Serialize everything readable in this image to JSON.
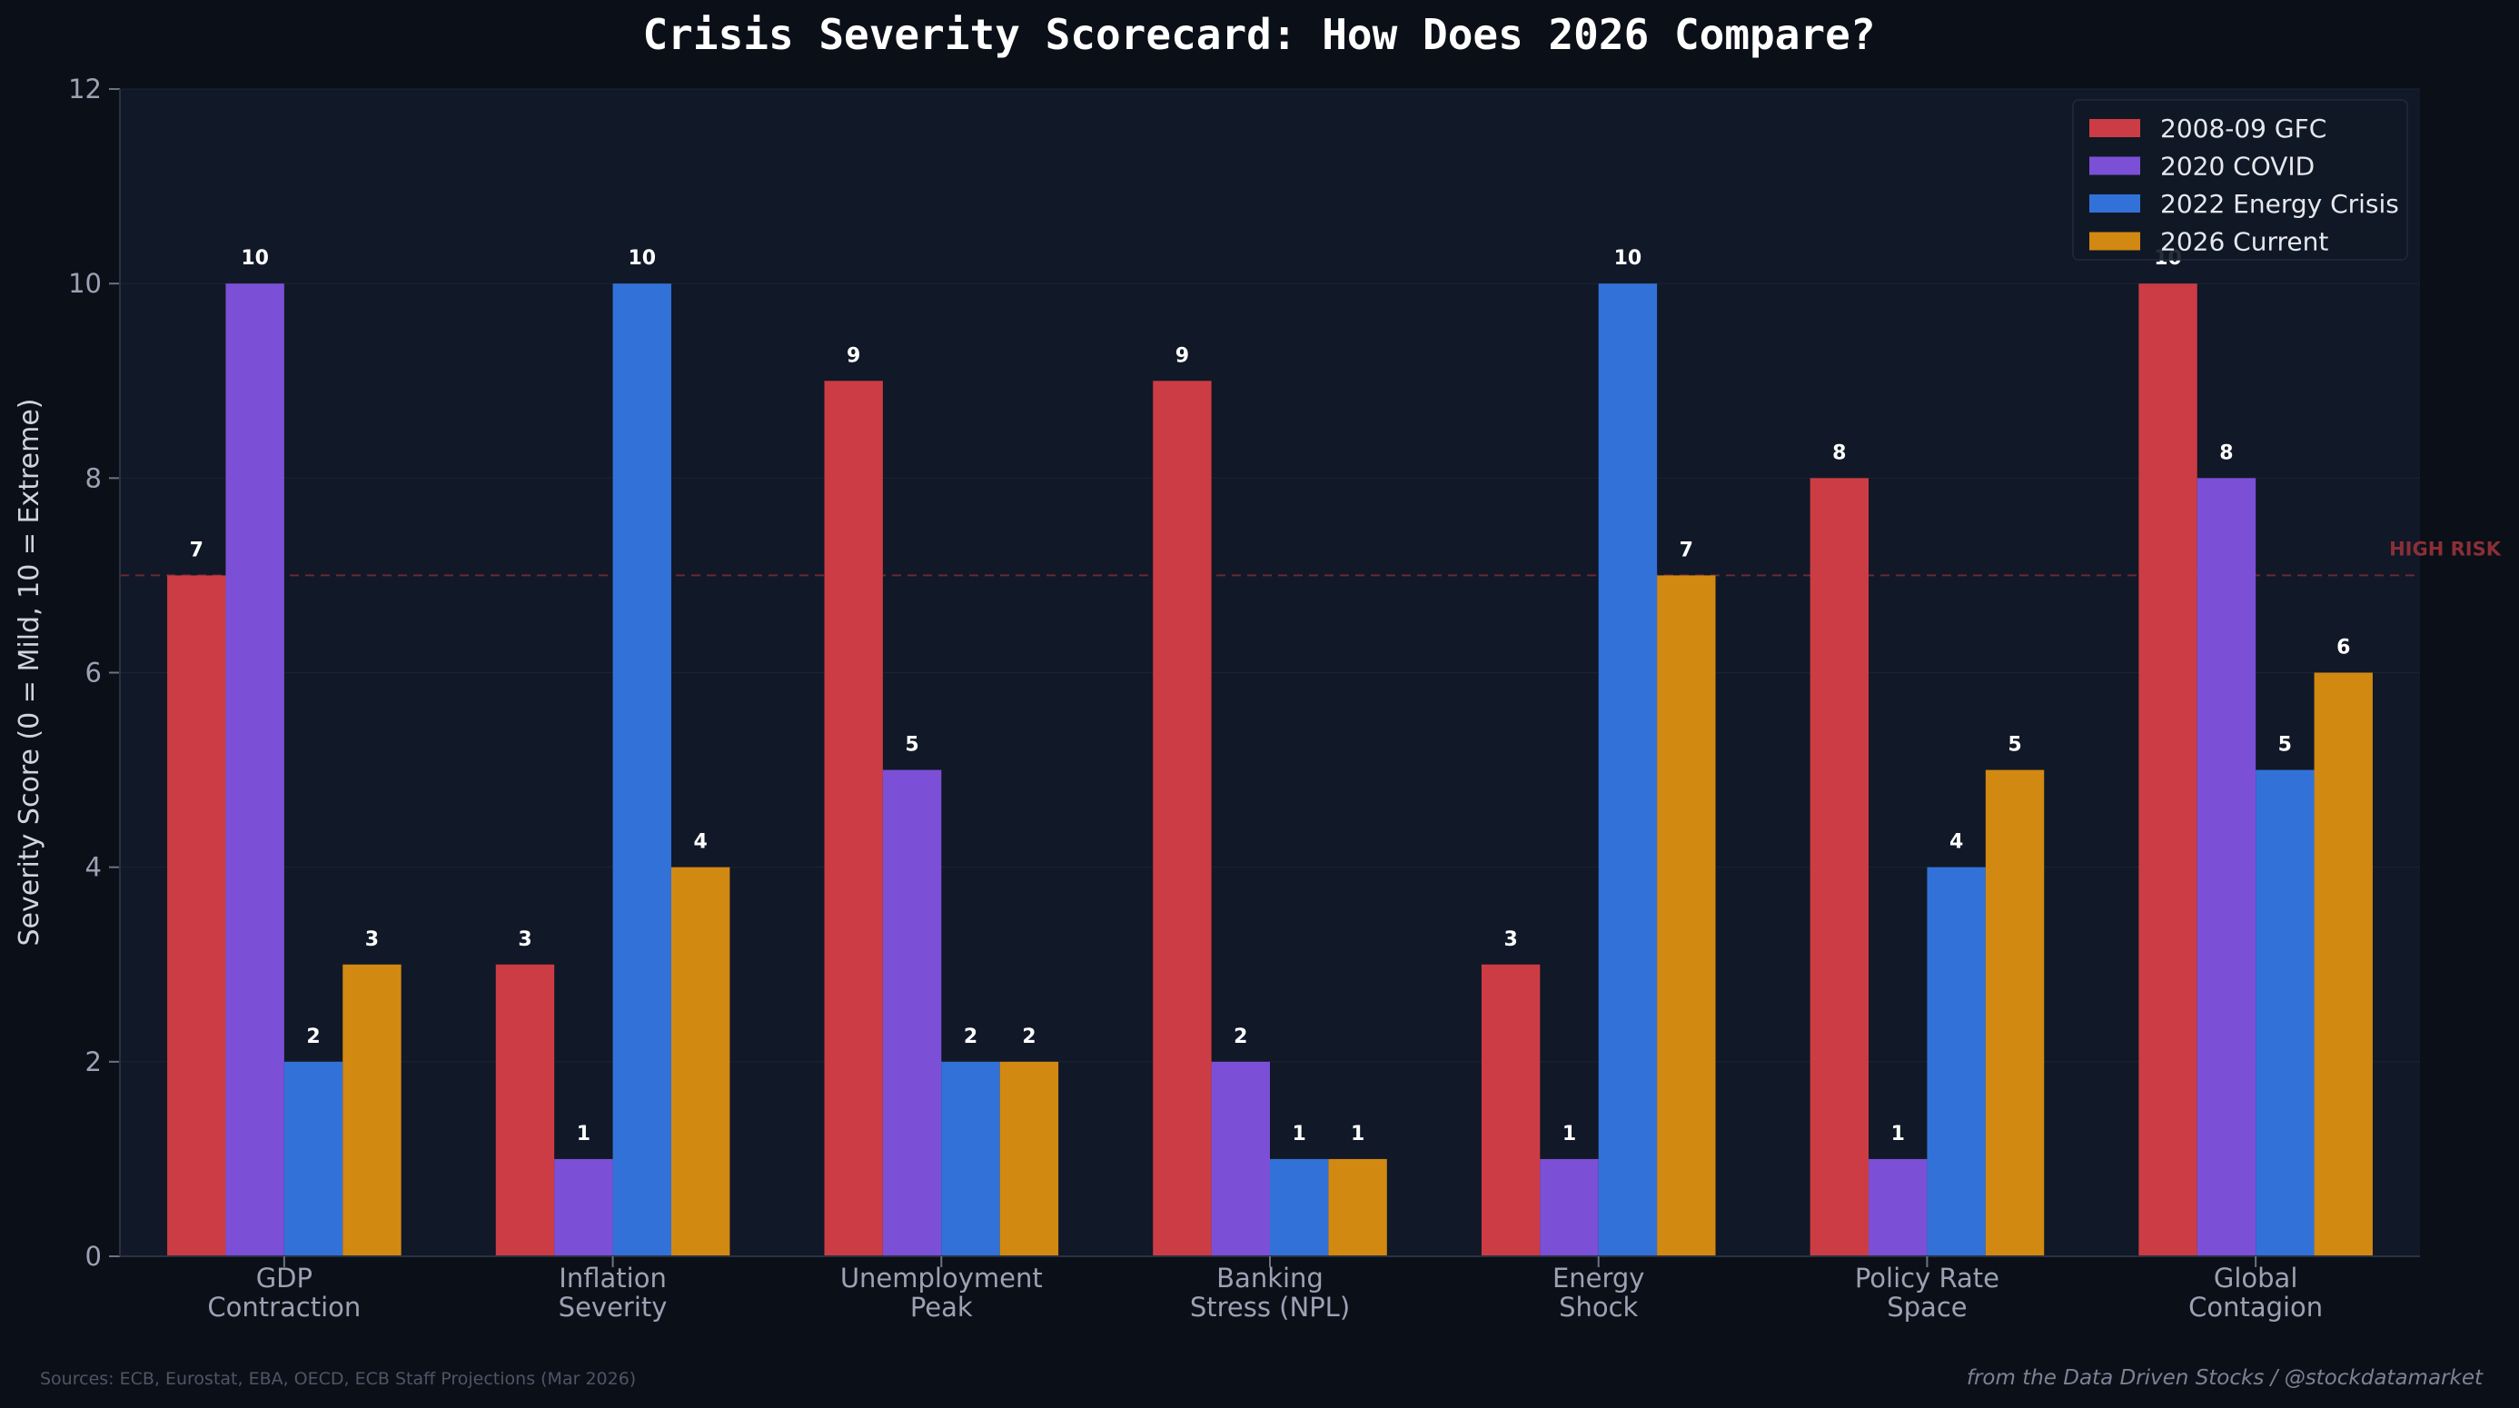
{
  "chart_data": {
    "type": "bar",
    "title": "Crisis Severity Scorecard: How Does 2026 Compare?",
    "xlabel": "",
    "ylabel": "Severity Score (0 = Mild, 10 = Extreme)",
    "ylim": [
      0,
      12
    ],
    "yticks": [
      0,
      2,
      4,
      6,
      8,
      10,
      12
    ],
    "grid": true,
    "legend_position": "top-right",
    "categories": [
      [
        "GDP",
        "Contraction"
      ],
      [
        "Inflation",
        "Severity"
      ],
      [
        "Unemployment",
        "Peak"
      ],
      [
        "Banking",
        "Stress (NPL)"
      ],
      [
        "Energy",
        "Shock"
      ],
      [
        "Policy Rate",
        "Space"
      ],
      [
        "Global",
        "Contagion"
      ]
    ],
    "series": [
      {
        "name": "2008-09 GFC",
        "color": "#cc3c44",
        "values": [
          7,
          3,
          9,
          9,
          3,
          8,
          10
        ]
      },
      {
        "name": "2020 COVID",
        "color": "#7b50d6",
        "values": [
          10,
          1,
          5,
          2,
          1,
          1,
          8
        ]
      },
      {
        "name": "2022 Energy Crisis",
        "color": "#3272d8",
        "values": [
          2,
          10,
          2,
          1,
          10,
          4,
          5
        ]
      },
      {
        "name": "2026 Current",
        "color": "#d18912",
        "values": [
          3,
          4,
          2,
          1,
          7,
          5,
          6
        ]
      }
    ],
    "threshold": {
      "value": 7,
      "label": "HIGH RISK",
      "color": "#8a2f37"
    }
  },
  "footer": {
    "source": "Sources: ECB, Eurostat, EBA, OECD, ECB Staff Projections (Mar 2026)",
    "credit": "from the Data Driven Stocks / @stockdatamarket"
  }
}
